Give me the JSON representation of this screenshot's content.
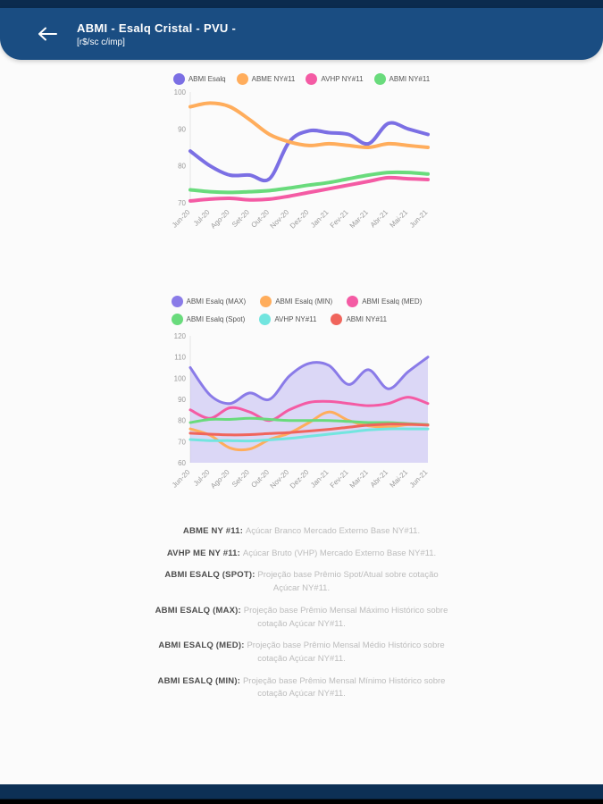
{
  "header": {
    "title": "ABMI - Esalq Cristal - PVU -",
    "subtitle": "[r$/sc c/imp]",
    "bg_color": "#1A4D82"
  },
  "chart_data": [
    {
      "type": "line",
      "title": "",
      "categories": [
        "Jun-20",
        "Jul-20",
        "Ago-20",
        "Set-20",
        "Out-20",
        "Nov-20",
        "Dez-20",
        "Jan-21",
        "Fev-21",
        "Mar-21",
        "Abr-21",
        "Mai-21",
        "Jun-21"
      ],
      "ylim": [
        70,
        100
      ],
      "yticks": [
        70,
        80,
        90,
        100
      ],
      "grid": false,
      "legend_position": "top",
      "line_width": 4,
      "series": [
        {
          "name": "ABMI Esalq",
          "color": "#7B6FE4",
          "values": [
            84,
            80,
            77.5,
            77.5,
            76.5,
            86.5,
            89.5,
            89,
            88.5,
            86,
            91.5,
            90,
            88.5
          ]
        },
        {
          "name": "ABME NY#11",
          "color": "#FFAD5C",
          "values": [
            96,
            97,
            96,
            92.5,
            88.5,
            86.5,
            85.5,
            86,
            85.5,
            85,
            86,
            85.5,
            85
          ]
        },
        {
          "name": "AVHP NY#11",
          "color": "#F45BA4",
          "values": [
            70.5,
            71,
            71.2,
            70.8,
            71,
            71.8,
            72.8,
            73.8,
            74.8,
            75.8,
            76.8,
            76.5,
            76.3
          ]
        },
        {
          "name": "ABMI NY#11",
          "color": "#69DB7C",
          "values": [
            73.5,
            73,
            72.8,
            73,
            73.3,
            74,
            74.8,
            75.5,
            76.5,
            77.5,
            78.2,
            78.2,
            77.8
          ]
        }
      ]
    },
    {
      "type": "line",
      "title": "",
      "categories": [
        "Jun-20",
        "Jul-20",
        "Ago-20",
        "Set-20",
        "Out-20",
        "Nov-20",
        "Dez-20",
        "Jan-21",
        "Fev-21",
        "Mar-21",
        "Abr-21",
        "Mai-21",
        "Jun-21"
      ],
      "ylim": [
        60,
        120
      ],
      "yticks": [
        60,
        70,
        80,
        90,
        100,
        110,
        120
      ],
      "grid": false,
      "legend_position": "top",
      "line_width": 3,
      "series": [
        {
          "name": "ABMI Esalq (MAX)",
          "color": "#8A7BE8",
          "fill": true,
          "values": [
            105,
            92,
            88,
            93,
            90,
            101,
            107,
            106,
            97,
            104,
            95,
            103,
            110
          ]
        },
        {
          "name": "ABMI Esalq (MIN)",
          "color": "#FFAD5C",
          "values": [
            76,
            73,
            67,
            66.5,
            71,
            74,
            79,
            84,
            80,
            77.5,
            77,
            78,
            78
          ]
        },
        {
          "name": "ABMI Esalq (MED)",
          "color": "#F45BA4",
          "values": [
            85,
            81,
            86,
            84,
            80,
            85,
            88.5,
            89,
            88,
            87,
            88,
            91,
            88
          ]
        },
        {
          "name": "ABMI Esalq (Spot)",
          "color": "#69DB7C",
          "values": [
            79,
            80.5,
            80.5,
            81,
            80.5,
            80,
            80,
            80,
            79.5,
            79,
            79,
            78.5,
            78
          ]
        },
        {
          "name": "AVHP NY#11",
          "color": "#72E5DF",
          "values": [
            71,
            70.5,
            70.5,
            70.3,
            70.8,
            71.5,
            72.5,
            73.5,
            74.5,
            75.5,
            76,
            76,
            76
          ]
        },
        {
          "name": "ABMI NY#11",
          "color": "#F0655C",
          "values": [
            74,
            73.5,
            73.2,
            73.3,
            73.8,
            74.3,
            75,
            75.8,
            76.8,
            77.8,
            78.3,
            78.2,
            77.8
          ]
        }
      ]
    }
  ],
  "descriptions": [
    {
      "label": "ABME NY #11:",
      "text": "Açúcar Branco Mercado Externo Base NY#11."
    },
    {
      "label": "AVHP ME NY #11:",
      "text": "Açúcar Bruto (VHP) Mercado Externo Base NY#11."
    },
    {
      "label": "ABMI ESALQ (SPOT):",
      "text": "Projeção base Prêmio Spot/Atual sobre cotação Açúcar NY#11."
    },
    {
      "label": "ABMI ESALQ (MAX):",
      "text": "Projeção base Prêmio Mensal Máximo Histórico sobre cotação Açúcar NY#11."
    },
    {
      "label": "ABMI ESALQ (MED):",
      "text": "Projeção base Prêmio Mensal Médio Histórico sobre cotação Açúcar NY#11."
    },
    {
      "label": "ABMI ESALQ (MIN):",
      "text": "Projeção base Prêmio Mensal Mínimo Histórico sobre cotação Açúcar NY#11."
    }
  ]
}
